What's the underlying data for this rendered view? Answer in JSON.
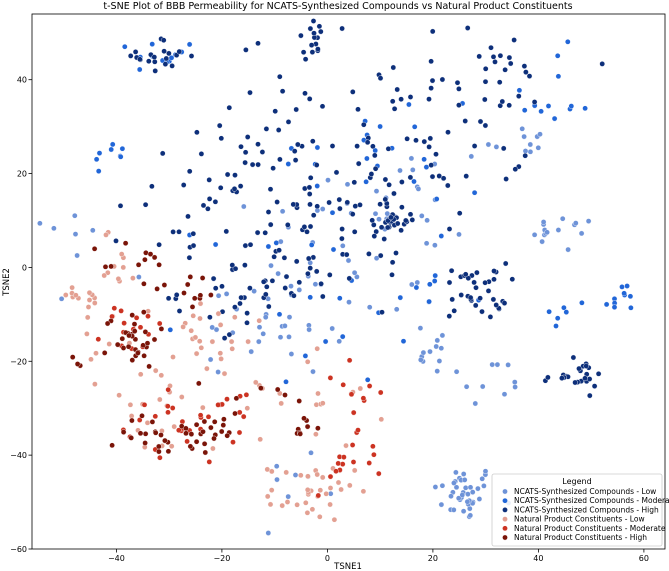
{
  "chart_data": {
    "type": "scatter",
    "title": "t-SNE Plot of BBB Permeability for NCATS-Synthesized Compounds vs Natural Product Constituents",
    "xlabel": "TSNE1",
    "ylabel": "TSNE2",
    "xlim": [
      -56,
      64
    ],
    "ylim": [
      -60,
      54
    ],
    "xticks": [
      -40,
      -20,
      0,
      20,
      40,
      60
    ],
    "yticks": [
      -60,
      -40,
      -20,
      0,
      20,
      40
    ],
    "grid": false,
    "legend": {
      "title": "Legend",
      "placement": "lower-right"
    },
    "series": [
      {
        "name": "NCATS-Synthesized Compounds - Low",
        "color": "#6e93d8",
        "clusters": [
          {
            "center": [
              26,
              -48
            ],
            "spread": [
              3,
              3
            ],
            "count": 40
          },
          {
            "center": [
              45,
              7
            ],
            "spread": [
              3,
              2
            ],
            "count": 15
          },
          {
            "center": [
              20,
              -17
            ],
            "spread": [
              3,
              3
            ],
            "count": 12
          },
          {
            "center": [
              36,
              27
            ],
            "spread": [
              3,
              2
            ],
            "count": 10
          },
          {
            "center": [
              -10,
              -10
            ],
            "spread": [
              10,
              7
            ],
            "count": 40
          },
          {
            "center": [
              10,
              10
            ],
            "spread": [
              12,
              10
            ],
            "count": 40
          },
          {
            "center": [
              30,
              -25
            ],
            "spread": [
              4,
              3
            ],
            "count": 10
          },
          {
            "center": [
              -48,
              8
            ],
            "spread": [
              4,
              4
            ],
            "count": 6
          },
          {
            "center": [
              -5,
              -44
            ],
            "spread": [
              4,
              3
            ],
            "count": 8
          }
        ]
      },
      {
        "name": "NCATS-Synthesized Compounds - Moderate",
        "color": "#2166d8",
        "clusters": [
          {
            "center": [
              -31,
              45
            ],
            "spread": [
              3,
              2
            ],
            "count": 12
          },
          {
            "center": [
              45,
              -10
            ],
            "spread": [
              2,
              2
            ],
            "count": 6
          },
          {
            "center": [
              56,
              -7
            ],
            "spread": [
              2,
              2
            ],
            "count": 10
          },
          {
            "center": [
              -41,
              24
            ],
            "spread": [
              1.5,
              1.5
            ],
            "count": 8
          },
          {
            "center": [
              42,
              36
            ],
            "spread": [
              4,
              5
            ],
            "count": 12
          },
          {
            "center": [
              0,
              -5
            ],
            "spread": [
              12,
              10
            ],
            "count": 30
          },
          {
            "center": [
              10,
              25
            ],
            "spread": [
              10,
              10
            ],
            "count": 20
          }
        ]
      },
      {
        "name": "NCATS-Synthesized Compounds - High",
        "color": "#0d2f7a",
        "clusters": [
          {
            "center": [
              -31,
              45
            ],
            "spread": [
              2.5,
              2
            ],
            "count": 20
          },
          {
            "center": [
              -3,
              49
            ],
            "spread": [
              1.5,
              2
            ],
            "count": 15
          },
          {
            "center": [
              13,
              10
            ],
            "spread": [
              2,
              2
            ],
            "count": 25
          },
          {
            "center": [
              28,
              -5
            ],
            "spread": [
              3,
              3
            ],
            "count": 35
          },
          {
            "center": [
              47,
              -23
            ],
            "spread": [
              3,
              1.5
            ],
            "count": 25
          },
          {
            "center": [
              -12,
              -5
            ],
            "spread": [
              8,
              4
            ],
            "count": 40
          },
          {
            "center": [
              2,
              10
            ],
            "spread": [
              12,
              8
            ],
            "count": 70
          },
          {
            "center": [
              10,
              30
            ],
            "spread": [
              14,
              10
            ],
            "count": 50
          },
          {
            "center": [
              25,
              35
            ],
            "spread": [
              8,
              8
            ],
            "count": 30
          },
          {
            "center": [
              33,
              44
            ],
            "spread": [
              3,
              3
            ],
            "count": 10
          },
          {
            "center": [
              -15,
              25
            ],
            "spread": [
              8,
              8
            ],
            "count": 25
          },
          {
            "center": [
              -25,
              10
            ],
            "spread": [
              6,
              5
            ],
            "count": 20
          }
        ]
      },
      {
        "name": "Natural Product Constituents - Low",
        "color": "#e3a092",
        "clusters": [
          {
            "center": [
              -3,
              -48
            ],
            "spread": [
              4,
              3
            ],
            "count": 35
          },
          {
            "center": [
              -48,
              -7
            ],
            "spread": [
              3,
              2
            ],
            "count": 10
          },
          {
            "center": [
              -22,
              -15
            ],
            "spread": [
              5,
              5
            ],
            "count": 25
          },
          {
            "center": [
              -33,
              -30
            ],
            "spread": [
              5,
              5
            ],
            "count": 20
          },
          {
            "center": [
              -40,
              0
            ],
            "spread": [
              3,
              4
            ],
            "count": 12
          },
          {
            "center": [
              -5,
              -27
            ],
            "spread": [
              8,
              6
            ],
            "count": 20
          },
          {
            "center": [
              -42,
              -15
            ],
            "spread": [
              3,
              4
            ],
            "count": 10
          }
        ]
      },
      {
        "name": "Natural Product Constituents - Moderate",
        "color": "#cc3322",
        "clusters": [
          {
            "center": [
              3,
              -42
            ],
            "spread": [
              3,
              3
            ],
            "count": 15
          },
          {
            "center": [
              -30,
              -35
            ],
            "spread": [
              6,
              4
            ],
            "count": 20
          },
          {
            "center": [
              -37,
              -14
            ],
            "spread": [
              3,
              3
            ],
            "count": 15
          },
          {
            "center": [
              -20,
              -30
            ],
            "spread": [
              4,
              4
            ],
            "count": 12
          },
          {
            "center": [
              4,
              -25
            ],
            "spread": [
              5,
              5
            ],
            "count": 10
          }
        ]
      },
      {
        "name": "Natural Product Constituents - High",
        "color": "#7a1408",
        "clusters": [
          {
            "center": [
              -37,
              -15
            ],
            "spread": [
              2.5,
              3
            ],
            "count": 30
          },
          {
            "center": [
              -31,
              -35
            ],
            "spread": [
              4,
              3
            ],
            "count": 25
          },
          {
            "center": [
              -21,
              -35
            ],
            "spread": [
              3,
              2
            ],
            "count": 15
          },
          {
            "center": [
              -35,
              0
            ],
            "spread": [
              4,
              3
            ],
            "count": 12
          },
          {
            "center": [
              -26,
              -5
            ],
            "spread": [
              3,
              2
            ],
            "count": 10
          },
          {
            "center": [
              -47,
              -20
            ],
            "spread": [
              1,
              1
            ],
            "count": 3
          },
          {
            "center": [
              -5,
              -33
            ],
            "spread": [
              3,
              2
            ],
            "count": 8
          },
          {
            "center": [
              -12,
              -28
            ],
            "spread": [
              3,
              2
            ],
            "count": 6
          }
        ]
      }
    ]
  }
}
